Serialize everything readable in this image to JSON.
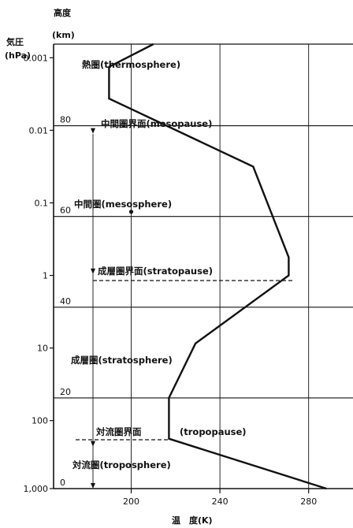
{
  "chart_data": {
    "type": "line",
    "title": "",
    "xlabel": "温　度(K)",
    "y_left_label_1": "気圧",
    "y_left_label_2": "(hPa)",
    "y_right_label_1": "高度",
    "y_right_label_2": "(km)",
    "x_ticks": [
      "200",
      "240",
      "280"
    ],
    "pressure_ticks": [
      "0.001",
      "0.01",
      "0.1",
      "1",
      "10",
      "100",
      "1,000"
    ],
    "altitude_ticks": [
      "0",
      "20",
      "40",
      "60",
      "80"
    ],
    "xlim": [
      165,
      300
    ],
    "ylim_km": [
      0,
      98
    ],
    "layers": {
      "thermosphere": "熱圏(thermosphere)",
      "mesopause": "中間圏界面(mesopause)",
      "mesosphere": "中間圏(mesosphere)",
      "stratopause": "成層圏界面(stratopause)",
      "stratosphere": "成層圏(stratosphere)",
      "tropopause_ja": "対流圏界面",
      "tropopause_en": "(tropopause)",
      "troposphere": "対流圏(troposphere)"
    },
    "series": [
      {
        "values_km": [
          0,
          11,
          20,
          32,
          47,
          51,
          71,
          86,
          93,
          98
        ],
        "values_K": [
          288,
          217,
          217,
          229,
          271,
          271,
          255,
          190,
          190,
          210
        ]
      }
    ]
  }
}
